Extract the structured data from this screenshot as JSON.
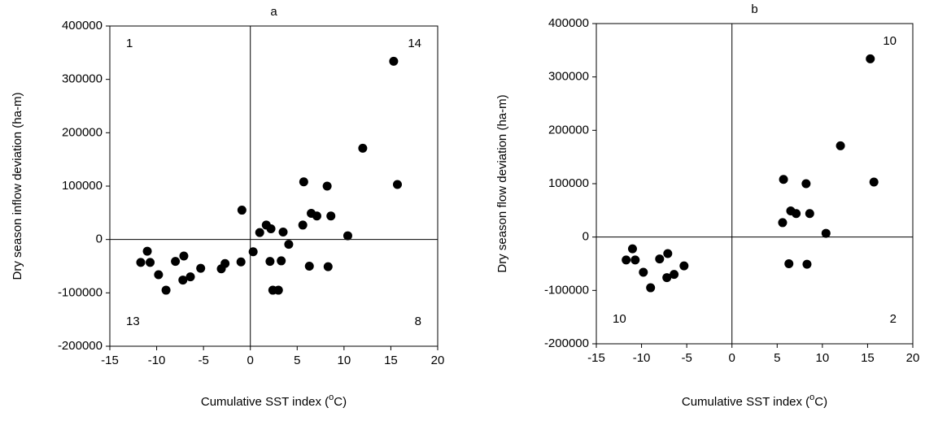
{
  "chart_data": [
    {
      "type": "scatter",
      "title": "a",
      "xlabel": [
        "Cumulative SST index (",
        "o",
        "C)"
      ],
      "ylabel": "Dry season inflow deviation (ha-m)",
      "xlim": [
        -15,
        20
      ],
      "xticks": [
        -15,
        -10,
        -5,
        0,
        5,
        10,
        15,
        20
      ],
      "ylim": [
        -200000,
        400000
      ],
      "yticks": [
        -200000,
        -100000,
        0,
        100000,
        200000,
        300000,
        400000
      ],
      "color": "#000000",
      "x": [
        -11.7,
        -11.0,
        -10.7,
        -9.8,
        -9.0,
        -8.0,
        -7.1,
        -7.2,
        -6.4,
        -5.3,
        -3.1,
        -2.7,
        -1.0,
        -0.9,
        0.3,
        1.0,
        1.7,
        2.2,
        2.1,
        2.4,
        3.0,
        3.3,
        3.5,
        4.1,
        5.6,
        5.7,
        6.3,
        6.5,
        7.1,
        8.2,
        8.3,
        8.6,
        10.4,
        12.0,
        15.3,
        15.7
      ],
      "y": [
        -43000,
        -22000,
        -43000,
        -66000,
        -95000,
        -41000,
        -31000,
        -76000,
        -70000,
        -54000,
        -55000,
        -45000,
        -42000,
        55000,
        -23000,
        13000,
        27000,
        20000,
        -41000,
        -95000,
        -95000,
        -40000,
        14000,
        -9000,
        27000,
        108000,
        -50000,
        49000,
        44000,
        100000,
        -51000,
        44000,
        7000,
        171000,
        334000,
        103000
      ],
      "annotations": [
        {
          "text": "1",
          "corner": "top-left"
        },
        {
          "text": "14",
          "corner": "top-right"
        },
        {
          "text": "13",
          "corner": "bottom-left"
        },
        {
          "text": "8",
          "corner": "bottom-right"
        }
      ]
    },
    {
      "type": "scatter",
      "title": "b",
      "xlabel": [
        "Cumulative SST index (",
        "o",
        "C)"
      ],
      "ylabel": "Dry season flow deviation (ha-m)",
      "xlim": [
        -15,
        20
      ],
      "xticks": [
        -15,
        -10,
        -5,
        0,
        5,
        10,
        15,
        20
      ],
      "ylim": [
        -200000,
        400000
      ],
      "yticks": [
        -200000,
        -100000,
        0,
        100000,
        200000,
        300000,
        400000
      ],
      "color": "#000000",
      "x": [
        -11.7,
        -11.0,
        -10.7,
        -9.8,
        -9.0,
        -8.0,
        -7.1,
        -7.2,
        -6.4,
        -5.3,
        5.6,
        5.7,
        6.3,
        6.5,
        7.1,
        8.2,
        8.3,
        8.6,
        10.4,
        12.0,
        15.3,
        15.7
      ],
      "y": [
        -43000,
        -22000,
        -43000,
        -66000,
        -95000,
        -41000,
        -31000,
        -76000,
        -70000,
        -54000,
        27000,
        108000,
        -50000,
        49000,
        44000,
        100000,
        -51000,
        44000,
        7000,
        171000,
        334000,
        103000
      ],
      "annotations": [
        {
          "text": "10",
          "corner": "top-right"
        },
        {
          "text": "10",
          "corner": "bottom-left"
        },
        {
          "text": "2",
          "corner": "bottom-right"
        }
      ]
    }
  ]
}
